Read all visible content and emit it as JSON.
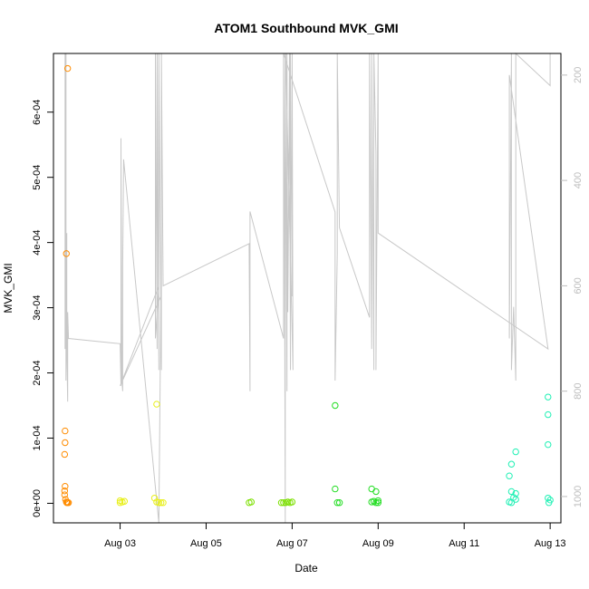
{
  "chart_data": {
    "type": "scatter",
    "title": "ATOM1 Southbound MVK_GMI",
    "xlabel": "Date",
    "ylabel": "MVK_GMI",
    "x_unit": "date (2016 August, day-of-month with fractional day)",
    "xlim": [
      1.45,
      13.25
    ],
    "ylim": [
      -3e-05,
      0.00069
    ],
    "x_ticks": [
      {
        "value": 3,
        "label": "Aug 03"
      },
      {
        "value": 5,
        "label": "Aug 05"
      },
      {
        "value": 7,
        "label": "Aug 07"
      },
      {
        "value": 9,
        "label": "Aug 09"
      },
      {
        "value": 11,
        "label": "Aug 11"
      },
      {
        "value": 13,
        "label": "Aug 13"
      }
    ],
    "y_ticks": [
      {
        "value": 0,
        "label": "0e+00"
      },
      {
        "value": 0.0001,
        "label": "1e-04"
      },
      {
        "value": 0.0002,
        "label": "2e-04"
      },
      {
        "value": 0.0003,
        "label": "3e-04"
      },
      {
        "value": 0.0004,
        "label": "4e-04"
      },
      {
        "value": 0.0005,
        "label": "5e-04"
      },
      {
        "value": 0.0006,
        "label": "6e-04"
      }
    ],
    "y2_ticks": [
      {
        "value": 200,
        "label": "200"
      },
      {
        "value": 400,
        "label": "400"
      },
      {
        "value": 600,
        "label": "600"
      },
      {
        "value": 800,
        "label": "800"
      },
      {
        "value": 1000,
        "label": "1000"
      }
    ],
    "y2lim_reversed": [
      1050,
      159
    ],
    "grid": false,
    "series": [
      {
        "kind": "points",
        "color": "#ff8c00",
        "points": [
          [
            1.78,
            0.000667
          ],
          [
            1.75,
            0.000383
          ],
          [
            1.72,
            0.000111
          ],
          [
            1.72,
            9.3e-05
          ],
          [
            1.71,
            7.5e-05
          ],
          [
            1.72,
            2.6e-05
          ],
          [
            1.71,
            1.9e-05
          ],
          [
            1.71,
            1.3e-05
          ],
          [
            1.73,
            6e-06
          ],
          [
            1.75,
            2e-06
          ],
          [
            1.76,
            1e-06
          ],
          [
            1.78,
            1e-06
          ],
          [
            1.8,
            1e-06
          ]
        ]
      },
      {
        "kind": "points",
        "color": "#e8ef1a",
        "points": [
          [
            3.0,
            1e-06
          ],
          [
            3.05,
            2e-06
          ],
          [
            3.1,
            3e-06
          ],
          [
            3.0,
            4e-06
          ],
          [
            3.85,
            0.000152
          ],
          [
            3.8,
            8e-06
          ],
          [
            3.85,
            2e-06
          ],
          [
            3.9,
            1e-06
          ],
          [
            3.95,
            1e-06
          ],
          [
            4.0,
            1e-06
          ]
        ]
      },
      {
        "kind": "points",
        "color": "#7ce000",
        "points": [
          [
            6.0,
            1e-06
          ],
          [
            6.05,
            2e-06
          ],
          [
            6.75,
            1e-06
          ],
          [
            6.8,
            1e-06
          ],
          [
            6.85,
            1e-06
          ],
          [
            6.9,
            2e-06
          ],
          [
            6.95,
            1e-06
          ],
          [
            7.0,
            2e-06
          ]
        ]
      },
      {
        "kind": "points",
        "color": "#22dd22",
        "points": [
          [
            8.0,
            0.00015
          ],
          [
            8.0,
            2.2e-05
          ],
          [
            8.05,
            1e-06
          ],
          [
            8.1,
            1e-06
          ],
          [
            8.85,
            2.2e-05
          ],
          [
            8.95,
            1.8e-05
          ],
          [
            8.85,
            2e-06
          ],
          [
            8.9,
            3e-06
          ],
          [
            9.0,
            4e-06
          ],
          [
            8.95,
            1e-06
          ],
          [
            9.0,
            1e-06
          ]
        ]
      },
      {
        "kind": "points",
        "color": "#1ff0b4",
        "points": [
          [
            12.95,
            0.000163
          ],
          [
            12.95,
            0.000136
          ],
          [
            12.95,
            9e-05
          ],
          [
            12.2,
            7.9e-05
          ],
          [
            12.1,
            6e-05
          ],
          [
            12.05,
            4.2e-05
          ],
          [
            12.1,
            1.8e-05
          ],
          [
            12.2,
            1.5e-05
          ],
          [
            12.15,
            9e-06
          ],
          [
            12.2,
            6e-06
          ],
          [
            12.05,
            2e-06
          ],
          [
            12.1,
            1e-06
          ],
          [
            12.95,
            8e-06
          ],
          [
            13.0,
            5e-06
          ],
          [
            12.97,
            1e-06
          ]
        ]
      },
      {
        "kind": "line",
        "color": "#c8c8c8",
        "axis": "right",
        "points": [
          [
            1.72,
            159
          ],
          [
            1.72,
            720
          ],
          [
            1.74,
            159
          ],
          [
            1.74,
            780
          ],
          [
            1.76,
            500
          ],
          [
            1.76,
            720
          ],
          [
            1.78,
            820
          ],
          [
            1.78,
            650
          ],
          [
            1.8,
            700
          ],
          [
            3.0,
            710
          ],
          [
            3.02,
            790
          ],
          [
            3.02,
            320
          ],
          [
            3.04,
            780
          ],
          [
            3.06,
            800
          ],
          [
            3.06,
            560
          ],
          [
            3.08,
            360
          ],
          [
            3.9,
            1050
          ],
          [
            3.95,
            620
          ],
          [
            3.0,
            790
          ],
          [
            3.9,
            600
          ],
          [
            3.82,
            700
          ],
          [
            3.82,
            159
          ],
          [
            3.86,
            720
          ],
          [
            3.86,
            159
          ],
          [
            3.9,
            760
          ],
          [
            3.9,
            159
          ],
          [
            3.96,
            760
          ],
          [
            3.96,
            159
          ],
          [
            4.0,
            600
          ],
          [
            6.0,
            520
          ],
          [
            6.02,
            800
          ],
          [
            6.02,
            459
          ],
          [
            6.8,
            700
          ],
          [
            6.8,
            159
          ],
          [
            6.82,
            400
          ],
          [
            6.84,
            1050
          ],
          [
            6.84,
            159
          ],
          [
            6.86,
            420
          ],
          [
            6.88,
            800
          ],
          [
            6.88,
            159
          ],
          [
            6.9,
            650
          ],
          [
            6.92,
            430
          ],
          [
            6.94,
            159
          ],
          [
            6.96,
            760
          ],
          [
            6.96,
            159
          ],
          [
            7.0,
            620
          ],
          [
            7.0,
            159
          ],
          [
            7.02,
            760
          ],
          [
            6.85,
            159
          ],
          [
            6.8,
            159
          ],
          [
            8.0,
            460
          ],
          [
            8.0,
            780
          ],
          [
            8.05,
            540
          ],
          [
            8.05,
            159
          ],
          [
            8.1,
            490
          ],
          [
            8.8,
            660
          ],
          [
            8.8,
            159
          ],
          [
            8.85,
            720
          ],
          [
            8.85,
            159
          ],
          [
            8.9,
            760
          ],
          [
            8.9,
            159
          ],
          [
            8.95,
            350
          ],
          [
            8.95,
            760
          ],
          [
            9.0,
            159
          ],
          [
            9.0,
            500
          ],
          [
            12.95,
            720
          ],
          [
            12.05,
            200
          ],
          [
            12.05,
            700
          ],
          [
            12.1,
            159
          ],
          [
            12.1,
            760
          ],
          [
            12.15,
            640
          ],
          [
            12.2,
            780
          ],
          [
            12.2,
            159
          ],
          [
            13.0,
            220
          ],
          [
            13.0,
            159
          ]
        ]
      }
    ]
  }
}
